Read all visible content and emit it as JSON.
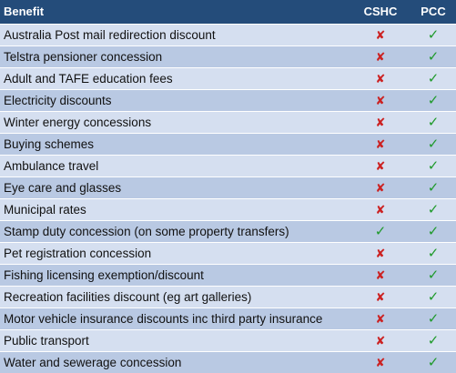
{
  "header": {
    "benefit": "Benefit",
    "cshc": "CSHC",
    "pcc": "PCC"
  },
  "symbols": {
    "yes": "✓",
    "no": "✘"
  },
  "colors": {
    "header_bg": "#244c7a",
    "row_light": "#d5dff0",
    "row_dark": "#b9c9e3",
    "tick": "#1f9a2b",
    "cross": "#cc2222"
  },
  "rows": [
    {
      "benefit": "Australia Post mail redirection discount",
      "cshc": "no",
      "pcc": "yes"
    },
    {
      "benefit": "Telstra pensioner concession",
      "cshc": "no",
      "pcc": "yes"
    },
    {
      "benefit": "Adult and TAFE education fees",
      "cshc": "no",
      "pcc": "yes"
    },
    {
      "benefit": "Electricity discounts",
      "cshc": "no",
      "pcc": "yes"
    },
    {
      "benefit": "Winter energy concessions",
      "cshc": "no",
      "pcc": "yes"
    },
    {
      "benefit": "Buying schemes",
      "cshc": "no",
      "pcc": "yes"
    },
    {
      "benefit": "Ambulance travel",
      "cshc": "no",
      "pcc": "yes"
    },
    {
      "benefit": "Eye care and glasses",
      "cshc": "no",
      "pcc": "yes"
    },
    {
      "benefit": "Municipal rates",
      "cshc": "no",
      "pcc": "yes"
    },
    {
      "benefit": "Stamp duty concession (on some property transfers)",
      "cshc": "yes",
      "pcc": "yes"
    },
    {
      "benefit": "Pet registration concession",
      "cshc": "no",
      "pcc": "yes"
    },
    {
      "benefit": "Fishing licensing exemption/discount",
      "cshc": "no",
      "pcc": "yes"
    },
    {
      "benefit": "Recreation facilities discount (eg art galleries)",
      "cshc": "no",
      "pcc": "yes"
    },
    {
      "benefit": "Motor vehicle insurance discounts inc third party insurance",
      "cshc": "no",
      "pcc": "yes"
    },
    {
      "benefit": "Public transport",
      "cshc": "no",
      "pcc": "yes"
    },
    {
      "benefit": "Water and sewerage concession",
      "cshc": "no",
      "pcc": "yes"
    }
  ]
}
